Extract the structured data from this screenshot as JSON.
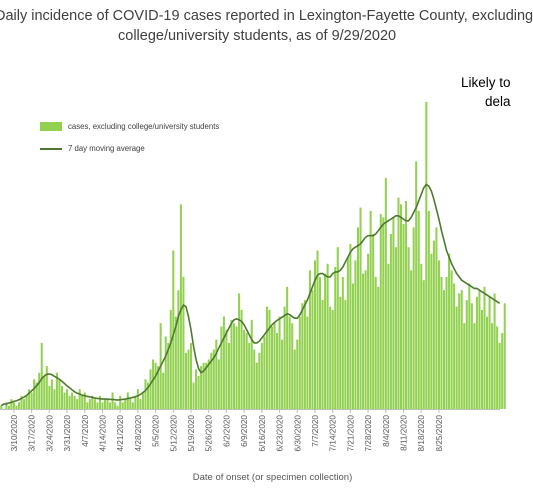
{
  "chart_data": {
    "type": "bar",
    "title_line1": "Daily incidence of COVID-19 cases reported in Lexington-Fayette County, excluding",
    "title_line2": "college/university students, as of 9/29/2020",
    "xlabel": "Date of onset (or specimen collection)",
    "ylabel": "",
    "annotation_line1": "Likely to",
    "annotation_line2": "dela",
    "x_start": "2020-03-05",
    "tick_labels": [
      "3/10/2020",
      "3/17/2020",
      "3/24/2020",
      "3/31/2020",
      "4/7/2020",
      "4/14/2020",
      "4/21/2020",
      "4/28/2020",
      "5/5/2020",
      "5/12/2020",
      "5/19/2020",
      "5/26/2020",
      "6/2/2020",
      "6/9/2020",
      "6/16/2020",
      "6/23/2020",
      "6/30/2020",
      "7/7/2020",
      "7/14/2020",
      "7/21/2020",
      "7/28/2020",
      "8/4/2020",
      "8/11/2020",
      "8/18/2020",
      "8/25/2020"
    ],
    "ylim": [
      0,
      96
    ],
    "grid": false,
    "legend_position": "top-left",
    "series": [
      {
        "name": "cases, excluding college/university students",
        "kind": "bar",
        "color": "#92D050",
        "values": [
          1,
          0,
          2,
          1,
          3,
          2,
          1,
          2,
          4,
          3,
          4,
          6,
          5,
          9,
          8,
          11,
          20,
          10,
          13,
          7,
          9,
          6,
          11,
          9,
          7,
          5,
          6,
          4,
          5,
          4,
          3,
          6,
          4,
          5,
          2,
          3,
          4,
          3,
          2,
          4,
          2,
          3,
          3,
          2,
          5,
          2,
          1,
          4,
          2,
          3,
          5,
          3,
          2,
          4,
          6,
          3,
          5,
          9,
          8,
          12,
          15,
          14,
          13,
          26,
          11,
          22,
          20,
          30,
          48,
          28,
          36,
          62,
          40,
          17,
          18,
          20,
          8,
          12,
          10,
          13,
          14,
          14,
          15,
          17,
          18,
          21,
          15,
          25,
          28,
          24,
          20,
          27,
          26,
          25,
          35,
          30,
          24,
          23,
          20,
          27,
          18,
          14,
          17,
          20,
          22,
          31,
          30,
          25,
          26,
          23,
          28,
          21,
          31,
          37,
          28,
          26,
          18,
          21,
          28,
          32,
          33,
          28,
          42,
          36,
          45,
          48,
          40,
          33,
          41,
          44,
          31,
          30,
          43,
          49,
          34,
          40,
          33,
          46,
          50,
          38,
          45,
          55,
          61,
          41,
          42,
          47,
          60,
          53,
          40,
          37,
          59,
          58,
          70,
          44,
          53,
          58,
          49,
          64,
          62,
          56,
          63,
          49,
          42,
          55,
          75,
          60,
          44,
          39,
          93,
          60,
          47,
          51,
          55,
          45,
          40,
          36,
          40,
          47,
          42,
          38,
          31,
          35,
          36,
          26,
          33,
          38,
          32,
          26,
          34,
          36,
          30,
          37,
          28,
          34,
          26,
          35,
          25,
          20,
          23,
          32
        ]
      },
      {
        "name": "7 day moving average",
        "kind": "line",
        "color": "#4E7A2E",
        "values": [
          1,
          1.5,
          1.5,
          1.8,
          2,
          2.3,
          2.5,
          2.8,
          3.2,
          3.6,
          4.1,
          4.8,
          5.5,
          6.2,
          7.1,
          8,
          9.2,
          10,
          10.5,
          10.6,
          10.4,
          9.9,
          9.5,
          9,
          8.4,
          7.7,
          7,
          6.4,
          5.8,
          5.2,
          4.8,
          4.5,
          4.2,
          4,
          3.8,
          3.7,
          3.5,
          3.3,
          3.2,
          3.1,
          3,
          3,
          3,
          2.9,
          2.9,
          2.8,
          2.7,
          2.8,
          2.9,
          3,
          3.2,
          3.3,
          3.5,
          3.7,
          4,
          4.4,
          5,
          5.6,
          6.5,
          7.6,
          8.8,
          10,
          11.5,
          13,
          14.5,
          16,
          18,
          20,
          22.5,
          25,
          28,
          30,
          31.5,
          31,
          28,
          24,
          19,
          15,
          12.2,
          11,
          11.5,
          12.5,
          13.5,
          14.5,
          15.5,
          16.8,
          18.5,
          20,
          21.5,
          23,
          24.5,
          26,
          27,
          27.3,
          27,
          26.5,
          25.5,
          24,
          22.5,
          21,
          20,
          20,
          20.5,
          21.5,
          22.5,
          23.5,
          24.5,
          25.5,
          26.2,
          26.8,
          27.3,
          27.8,
          28.3,
          28.8,
          28.6,
          28,
          27.5,
          27.5,
          28.5,
          30,
          31.5,
          33,
          35,
          37,
          39,
          40.5,
          41,
          41,
          40.5,
          40,
          40,
          41,
          41.5,
          41.5,
          42,
          43,
          44.5,
          46,
          47.5,
          48.5,
          49,
          49.5,
          50,
          51,
          52,
          52.5,
          52.5,
          52.5,
          53,
          54,
          55,
          56,
          56.5,
          57,
          57.5,
          58,
          58.5,
          58.5,
          58,
          57.5,
          57,
          57,
          58,
          59.5,
          61,
          63,
          65,
          67,
          68,
          67.5,
          66,
          63.5,
          60.5,
          57.5,
          54,
          51,
          48,
          46,
          44,
          42.5,
          41,
          40,
          39,
          38.5,
          38,
          37.5,
          37,
          36.5,
          36.5,
          36,
          35.5,
          35,
          34.5,
          34,
          33.5,
          33,
          32.5,
          32
        ]
      }
    ]
  }
}
